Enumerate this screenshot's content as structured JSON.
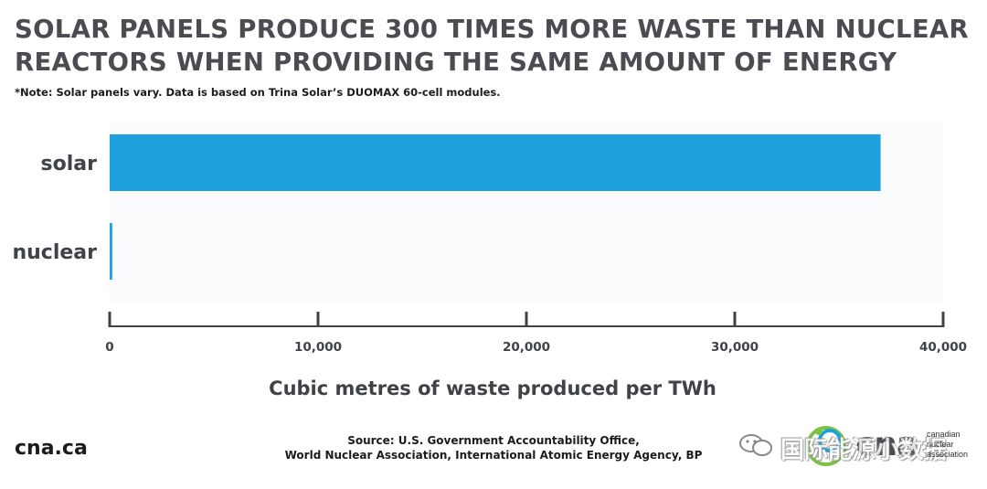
{
  "header": {
    "title_line1": "SOLAR PANELS PRODUCE 300 TIMES MORE WASTE THAN NUCLEAR",
    "title_line2": "REACTORS WHEN PROVIDING THE SAME AMOUNT OF ENERGY",
    "note": "*Note: Solar panels vary. Data is based on Trina Solar’s DUOMAX 60-cell modules."
  },
  "chart_data": {
    "type": "bar",
    "orientation": "horizontal",
    "categories": [
      "solar",
      "nuclear"
    ],
    "values": [
      37000,
      123
    ],
    "xlabel": "Cubic metres of waste produced per TWh",
    "xlim": [
      0,
      40000
    ],
    "xticks": [
      0,
      10000,
      20000,
      30000,
      40000
    ],
    "xtick_labels": [
      "0",
      "10,000",
      "20,000",
      "30,000",
      "40,000"
    ],
    "grid": false,
    "legend": "none",
    "bar_color": "#1ea1dd",
    "plot_bg_color": "#fafbfc"
  },
  "footer": {
    "brand": "cna.ca",
    "source_line1": "Source: U.S. Government Accountability Office,",
    "source_line2": "World Nuclear Association, International Atomic Energy Agency, BP",
    "watermark": "国际能源小数据",
    "logo_word": "cna",
    "logo_assoc": [
      "canadian",
      "nuclear",
      "association"
    ]
  }
}
